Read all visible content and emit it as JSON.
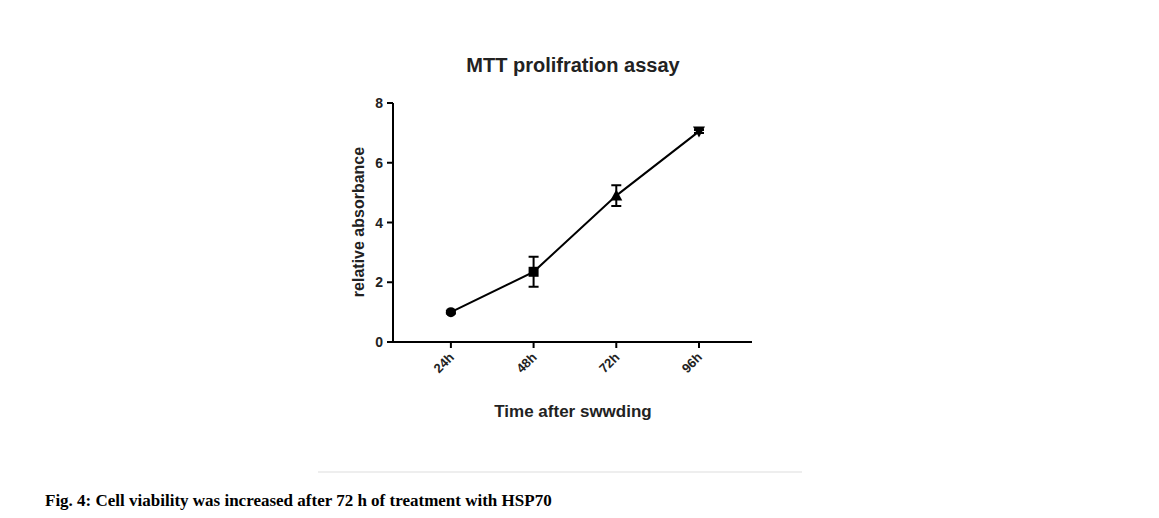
{
  "chart_data": {
    "type": "line",
    "title": "MTT prolifration assay",
    "x_label": "Time after swwding",
    "y_label": "relative absorbance",
    "caption": "Fig. 4: Cell viability was increased after 72 h of treatment with HSP70",
    "categories": [
      "24h",
      "48h",
      "72h",
      "96h"
    ],
    "series": [
      {
        "name": "MTT",
        "color": "#000000",
        "marker": "varied",
        "line_style": "solid",
        "values": [
          1.0,
          2.35,
          4.9,
          7.05
        ],
        "errors": [
          0.05,
          0.5,
          0.35,
          0.05
        ]
      }
    ],
    "ylim": [
      0,
      8
    ],
    "yticks": [
      0,
      2,
      4,
      6,
      8
    ],
    "grid": false
  }
}
